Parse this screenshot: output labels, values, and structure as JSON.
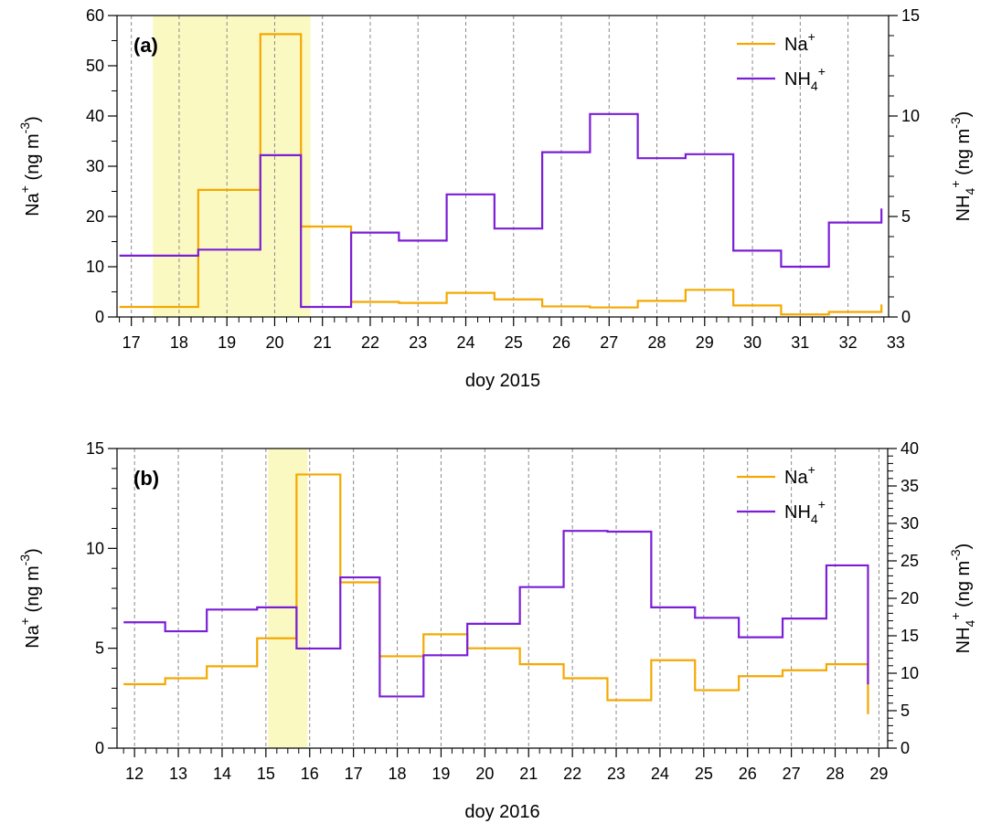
{
  "chart_data": [
    {
      "type": "line",
      "panel_label": "(a)",
      "xlabel": "doy 2015",
      "ylabel_left": {
        "base": "Na",
        "sup": "+",
        "unit_prefix": "(ng m",
        "unit_sup": "-3",
        "unit_suffix": ")"
      },
      "ylabel_right": {
        "base": "NH",
        "sub": "4",
        "sup": "+",
        "unit_prefix": "(ng m",
        "unit_sup": "-3",
        "unit_suffix": ")"
      },
      "xlim": [
        16.7,
        32.85
      ],
      "ylim_left": [
        0,
        60
      ],
      "ylim_right": [
        0,
        15
      ],
      "xticks": [
        17,
        18,
        19,
        20,
        21,
        22,
        23,
        24,
        25,
        26,
        27,
        28,
        29,
        30,
        31,
        32,
        33
      ],
      "yticks_left": [
        0,
        10,
        20,
        30,
        40,
        50,
        60
      ],
      "yticks_right": [
        0,
        5,
        10,
        15
      ],
      "highlight": [
        17.45,
        20.75
      ],
      "grid": "dashed vertical",
      "legend_position": "top-right",
      "series": [
        {
          "name": "Na",
          "name_sup": "+",
          "axis": "left",
          "color": "#f5a800",
          "x": [
            16.75,
            18.4,
            19.7,
            20.55,
            21.6,
            22.6,
            23.6,
            24.6,
            25.6,
            26.6,
            27.6,
            28.6,
            29.6,
            30.6,
            31.6,
            32.7
          ],
          "values": [
            2,
            25.3,
            56.3,
            18,
            3,
            2.8,
            4.8,
            3.5,
            2.1,
            1.9,
            3.2,
            5.4,
            2.3,
            0.5,
            1,
            2.5
          ]
        },
        {
          "name": "NH",
          "name_sub": "4",
          "name_sup": "+",
          "axis": "right",
          "color": "#7a1fd6",
          "x": [
            16.75,
            18.4,
            19.7,
            20.55,
            21.6,
            22.6,
            23.6,
            24.6,
            25.6,
            26.6,
            27.6,
            28.6,
            29.6,
            30.6,
            31.6,
            32.7
          ],
          "values": [
            3.05,
            3.35,
            8.05,
            0.5,
            4.2,
            3.8,
            6.1,
            4.4,
            8.2,
            10.1,
            7.9,
            8.1,
            3.3,
            2.5,
            4.7,
            5.4
          ]
        }
      ]
    },
    {
      "type": "line",
      "panel_label": "(b)",
      "xlabel": "doy 2016",
      "ylabel_left": {
        "base": "Na",
        "sup": "+",
        "unit_prefix": "(ng m",
        "unit_sup": "-3",
        "unit_suffix": ")"
      },
      "ylabel_right": {
        "base": "NH",
        "sub": "4",
        "sup": "+",
        "unit_prefix": "(ng m",
        "unit_sup": "-3",
        "unit_suffix": ")"
      },
      "xlim": [
        11.6,
        29.2
      ],
      "ylim_left": [
        0,
        15
      ],
      "ylim_right": [
        0,
        40
      ],
      "xticks": [
        12,
        13,
        14,
        15,
        16,
        17,
        18,
        19,
        20,
        21,
        22,
        23,
        24,
        25,
        26,
        27,
        28,
        29
      ],
      "yticks_left": [
        0,
        5,
        10,
        15
      ],
      "yticks_right": [
        0,
        5,
        10,
        15,
        20,
        25,
        30,
        35,
        40
      ],
      "highlight": [
        15.05,
        15.95
      ],
      "grid": "dashed vertical",
      "legend_position": "top-right",
      "series": [
        {
          "name": "Na",
          "name_sup": "+",
          "axis": "left",
          "color": "#f5a800",
          "x": [
            11.75,
            12.7,
            13.65,
            14.8,
            15.7,
            16.7,
            17.6,
            18.6,
            19.6,
            20.8,
            21.8,
            22.8,
            23.8,
            24.8,
            25.8,
            26.8,
            27.8,
            28.75
          ],
          "values": [
            3.2,
            3.5,
            4.1,
            5.5,
            13.7,
            8.3,
            4.6,
            5.7,
            5,
            4.2,
            3.5,
            2.4,
            4.4,
            2.9,
            3.6,
            3.9,
            4.2,
            1.7
          ]
        },
        {
          "name": "NH",
          "name_sub": "4",
          "name_sup": "+",
          "axis": "right",
          "color": "#7a1fd6",
          "x": [
            11.75,
            12.7,
            13.65,
            14.8,
            15.7,
            16.7,
            17.6,
            18.6,
            19.6,
            20.8,
            21.8,
            22.8,
            23.8,
            24.8,
            25.8,
            26.8,
            27.8,
            28.75
          ],
          "values": [
            16.8,
            15.6,
            18.5,
            18.8,
            13.3,
            22.8,
            6.9,
            12.4,
            16.6,
            21.5,
            29,
            28.9,
            18.8,
            17.4,
            14.8,
            17.3,
            24.4,
            8.5
          ]
        }
      ]
    }
  ]
}
